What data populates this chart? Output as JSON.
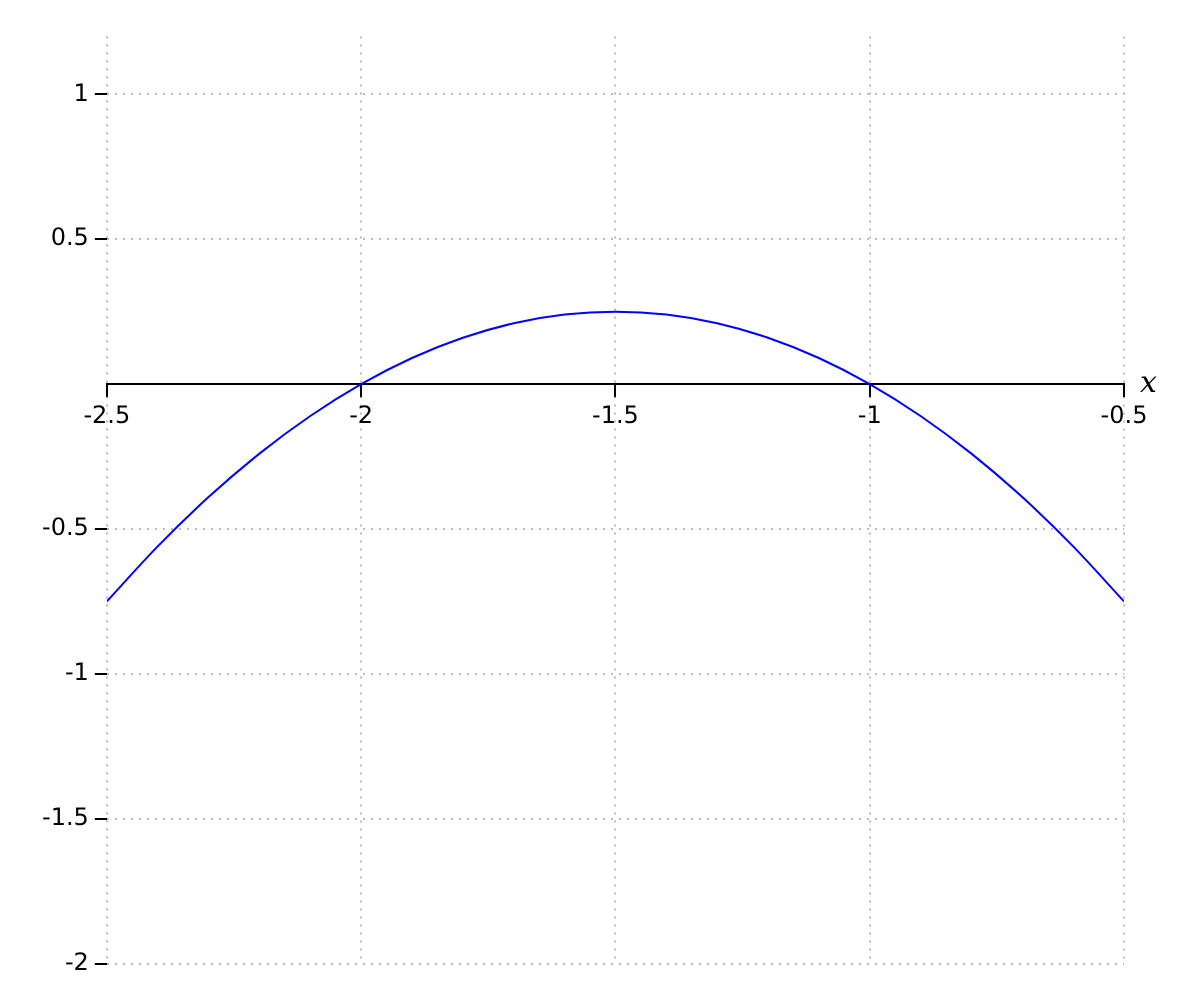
{
  "chart_data": {
    "type": "line",
    "xlabel": "x",
    "x": [
      -2.5,
      -2.4,
      -2.3,
      -2.2,
      -2.1,
      -2.0,
      -1.9,
      -1.8,
      -1.7,
      -1.6,
      -1.5,
      -1.4,
      -1.3,
      -1.2,
      -1.1,
      -1.0,
      -0.9,
      -0.8,
      -0.7,
      -0.6,
      -0.5
    ],
    "series": [
      {
        "color": "#0000ff",
        "values": [
          -0.75,
          -0.56,
          -0.39,
          -0.24,
          -0.11,
          0,
          0.09,
          0.16,
          0.21,
          0.24,
          0.25,
          0.24,
          0.21,
          0.16,
          0.09,
          0,
          -0.11,
          -0.24,
          -0.39,
          -0.56,
          -0.75
        ]
      }
    ],
    "xlim": [
      -2.5,
      -0.5
    ],
    "xticks": [
      -2.5,
      -2,
      -1.5,
      -1,
      -0.5
    ],
    "ylim": [
      -2,
      1.2
    ],
    "yticks": [
      -2,
      -1.5,
      -1,
      -0.5,
      0.5,
      1
    ],
    "grid": true,
    "legend": false,
    "marker": "none",
    "line_style": "solid"
  }
}
